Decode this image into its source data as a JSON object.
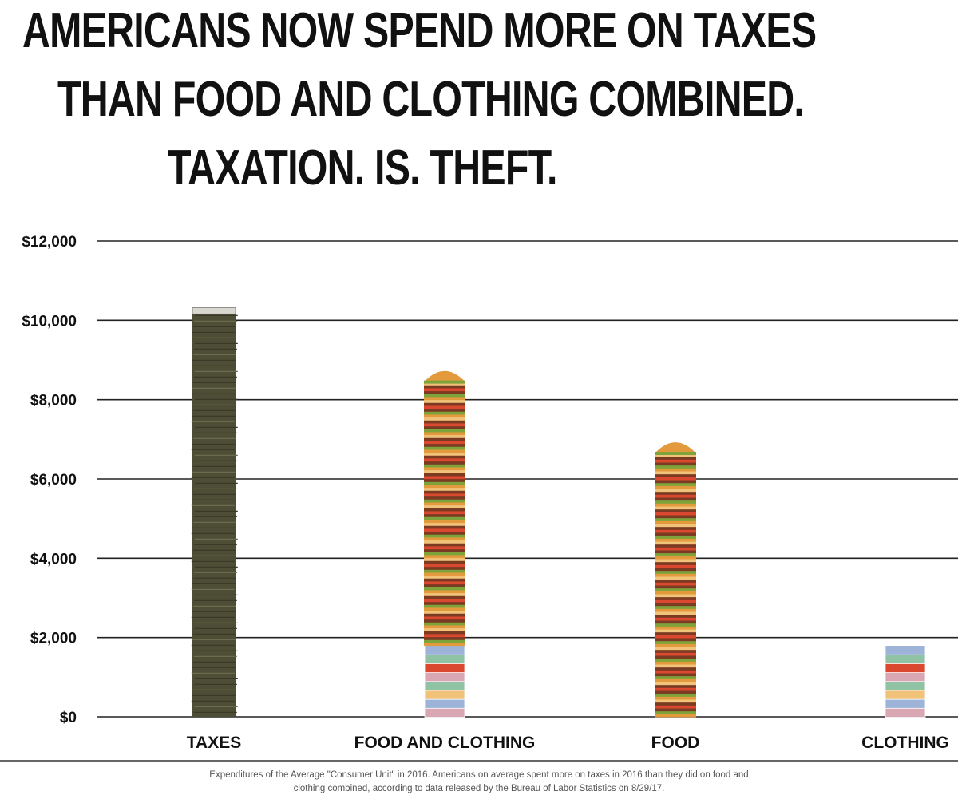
{
  "title_lines": [
    "AMERICANS NOW SPEND MORE ON TAXES",
    "THAN FOOD AND CLOTHING COMBINED.",
    "TAXATION.  IS.  THEFT."
  ],
  "footnote_lines": [
    "Expenditures of the Average \"Consumer Unit\" in 2016. Americans on average spent more on taxes in 2016 than they did on food and",
    "clothing combined, according to data released by the Bureau of Labor Statistics on 8/29/17."
  ],
  "colors": {
    "money": "#4e4e36",
    "money_light": "#6b6b50",
    "bun": "#e39a3c",
    "bun_light": "#f1c27a",
    "patty": "#7a3b22",
    "lettuce": "#7ea33a",
    "tomato": "#d9482f",
    "cloth_green": "#8fc3a3",
    "cloth_pink": "#d9a6b3",
    "cloth_blue": "#9db4d8",
    "grid": "#222222"
  },
  "chart_data": {
    "type": "bar",
    "title": "AMERICANS NOW SPEND MORE ON TAXES THAN FOOD AND CLOTHING COMBINED. TAXATION. IS. THEFT.",
    "xlabel": "",
    "ylabel": "",
    "ylim": [
      0,
      12000
    ],
    "yticks": [
      0,
      2000,
      4000,
      6000,
      8000,
      10000,
      12000
    ],
    "ytick_labels": [
      "$0",
      "$2,000",
      "$4,000",
      "$6,000",
      "$8,000",
      "$10,000",
      "$12,000"
    ],
    "grid": true,
    "categories": [
      "TAXES",
      "FOOD AND CLOTHING",
      "FOOD",
      "CLOTHING"
    ],
    "values": [
      10200,
      8800,
      7000,
      1800
    ],
    "bar_styles": [
      "money",
      "food+clothing",
      "food",
      "clothing"
    ]
  }
}
